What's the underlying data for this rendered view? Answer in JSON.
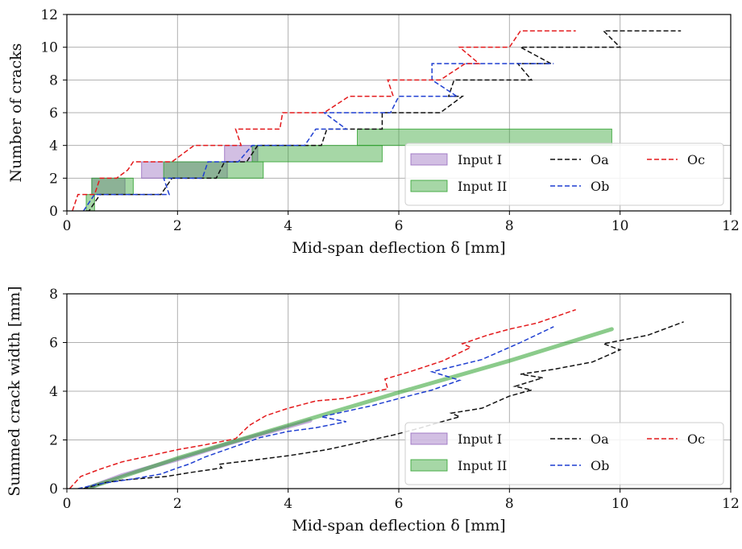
{
  "chart_data": [
    {
      "type": "line",
      "title": "",
      "xlabel": "Mid-span deflection δ [mm]",
      "ylabel": "Number of cracks",
      "xlim": [
        0,
        12
      ],
      "ylim": [
        0,
        12
      ],
      "xticks": [
        0,
        2,
        4,
        6,
        8,
        10,
        12
      ],
      "yticks": [
        0,
        2,
        4,
        6,
        8,
        10,
        12
      ],
      "grid": true,
      "legend_position": "lower-right",
      "legend": [
        {
          "label": "Input I",
          "kind": "band",
          "color": "#9467bd"
        },
        {
          "label": "Oa",
          "kind": "dashed",
          "color": "#111111"
        },
        {
          "label": "Oc",
          "kind": "dashed",
          "color": "#e31a1c"
        },
        {
          "label": "Input II",
          "kind": "band",
          "color": "#2ca02c"
        },
        {
          "label": "Ob",
          "kind": "dashed",
          "color": "#1f3fd1"
        }
      ],
      "bands": [
        {
          "name": "Input I",
          "color": "#9467bd",
          "rects": [
            [
              0.45,
              1.05,
              1,
              2
            ],
            [
              1.35,
              2.9,
              2,
              3
            ],
            [
              2.85,
              3.45,
              3,
              4
            ]
          ]
        },
        {
          "name": "Input II",
          "color": "#2ca02c",
          "rects": [
            [
              0.35,
              0.5,
              0,
              1
            ],
            [
              0.45,
              1.2,
              1,
              2
            ],
            [
              1.75,
              3.55,
              2,
              3
            ],
            [
              3.35,
              5.7,
              3,
              4
            ],
            [
              5.25,
              9.85,
              4,
              5
            ]
          ]
        }
      ],
      "series": [
        {
          "name": "Oa",
          "color": "#111111",
          "points": [
            [
              0.35,
              0
            ],
            [
              0.4,
              0
            ],
            [
              0.6,
              1
            ],
            [
              1.7,
              1
            ],
            [
              1.9,
              2
            ],
            [
              2.7,
              2
            ],
            [
              2.85,
              3
            ],
            [
              3.25,
              3
            ],
            [
              3.45,
              4
            ],
            [
              4.6,
              4
            ],
            [
              4.7,
              5
            ],
            [
              5.7,
              5
            ],
            [
              5.7,
              6
            ],
            [
              6.75,
              6
            ],
            [
              7.15,
              7
            ],
            [
              6.9,
              7
            ],
            [
              7.0,
              8
            ],
            [
              8.4,
              8
            ],
            [
              8.15,
              9
            ],
            [
              8.75,
              9
            ],
            [
              8.2,
              10
            ],
            [
              10.0,
              10
            ],
            [
              9.7,
              11
            ],
            [
              11.1,
              11
            ]
          ]
        },
        {
          "name": "Ob",
          "color": "#1f3fd1",
          "points": [
            [
              0.3,
              0
            ],
            [
              0.5,
              1
            ],
            [
              1.85,
              1
            ],
            [
              1.75,
              2
            ],
            [
              2.45,
              2
            ],
            [
              2.55,
              3
            ],
            [
              3.1,
              3
            ],
            [
              3.35,
              4
            ],
            [
              4.3,
              4
            ],
            [
              4.5,
              5
            ],
            [
              5.05,
              5
            ],
            [
              4.65,
              6
            ],
            [
              5.85,
              6
            ],
            [
              6.0,
              7
            ],
            [
              7.05,
              7
            ],
            [
              6.6,
              8
            ],
            [
              6.6,
              9
            ],
            [
              8.8,
              9
            ]
          ]
        },
        {
          "name": "Oc",
          "color": "#e31a1c",
          "points": [
            [
              0.1,
              0
            ],
            [
              0.2,
              1
            ],
            [
              0.5,
              1
            ],
            [
              0.6,
              2
            ],
            [
              0.9,
              2
            ],
            [
              1.1,
              2.5
            ],
            [
              1.2,
              3
            ],
            [
              1.9,
              3
            ],
            [
              2.3,
              4
            ],
            [
              3.15,
              4
            ],
            [
              3.05,
              5
            ],
            [
              3.85,
              5
            ],
            [
              3.9,
              6
            ],
            [
              4.65,
              6
            ],
            [
              5.1,
              7
            ],
            [
              5.9,
              7
            ],
            [
              5.8,
              8
            ],
            [
              6.75,
              8
            ],
            [
              7.2,
              9
            ],
            [
              7.45,
              9
            ],
            [
              7.1,
              10
            ],
            [
              8.0,
              10
            ],
            [
              8.2,
              11
            ],
            [
              9.2,
              11
            ]
          ]
        }
      ]
    },
    {
      "type": "line",
      "title": "",
      "xlabel": "Mid-span deflection δ [mm]",
      "ylabel": "Summed crack width [mm]",
      "xlim": [
        0,
        12
      ],
      "ylim": [
        0,
        8
      ],
      "xticks": [
        0,
        2,
        4,
        6,
        8,
        10,
        12
      ],
      "yticks": [
        0,
        2,
        4,
        6,
        8
      ],
      "grid": true,
      "legend_position": "lower-right",
      "legend": [
        {
          "label": "Input I",
          "kind": "band",
          "color": "#9467bd"
        },
        {
          "label": "Oa",
          "kind": "dashed",
          "color": "#111111"
        },
        {
          "label": "Oc",
          "kind": "dashed",
          "color": "#e31a1c"
        },
        {
          "label": "Input II",
          "kind": "band",
          "color": "#2ca02c"
        },
        {
          "label": "Ob",
          "kind": "dashed",
          "color": "#1f3fd1"
        }
      ],
      "bands": [
        {
          "name": "Input I",
          "color": "#9467bd",
          "polyline": [
            [
              0.35,
              0
            ],
            [
              1,
              0.55
            ],
            [
              2,
              1.2
            ],
            [
              3,
              1.9
            ],
            [
              4.4,
              2.8
            ]
          ],
          "width": 5
        },
        {
          "name": "Input II",
          "color": "#2ca02c",
          "polyline": [
            [
              0.35,
              0
            ],
            [
              2,
              1.25
            ],
            [
              4,
              2.6
            ],
            [
              6,
              3.95
            ],
            [
              8,
              5.25
            ],
            [
              9.85,
              6.55
            ]
          ],
          "width": 5
        }
      ],
      "series": [
        {
          "name": "Oa",
          "color": "#111111",
          "points": [
            [
              0.3,
              0
            ],
            [
              0.7,
              0.25
            ],
            [
              1,
              0.35
            ],
            [
              1.8,
              0.5
            ],
            [
              2.2,
              0.65
            ],
            [
              2.8,
              0.85
            ],
            [
              2.75,
              1.0
            ],
            [
              3.3,
              1.15
            ],
            [
              4,
              1.35
            ],
            [
              4.7,
              1.6
            ],
            [
              5.3,
              1.9
            ],
            [
              5.9,
              2.2
            ],
            [
              6.4,
              2.5
            ],
            [
              6.7,
              2.7
            ],
            [
              7.1,
              2.95
            ],
            [
              6.95,
              3.1
            ],
            [
              7.5,
              3.3
            ],
            [
              8,
              3.8
            ],
            [
              8.4,
              4.05
            ],
            [
              8.1,
              4.2
            ],
            [
              8.6,
              4.55
            ],
            [
              8.2,
              4.7
            ],
            [
              8.8,
              4.9
            ],
            [
              9.5,
              5.2
            ],
            [
              10,
              5.7
            ],
            [
              9.7,
              5.95
            ],
            [
              10.5,
              6.3
            ],
            [
              11.15,
              6.85
            ]
          ]
        },
        {
          "name": "Ob",
          "color": "#1f3fd1",
          "points": [
            [
              0.2,
              0
            ],
            [
              0.6,
              0.2
            ],
            [
              1.2,
              0.4
            ],
            [
              1.7,
              0.6
            ],
            [
              2.0,
              0.85
            ],
            [
              2.2,
              1.0
            ],
            [
              2.5,
              1.3
            ],
            [
              3.0,
              1.7
            ],
            [
              3.5,
              2.1
            ],
            [
              4.0,
              2.35
            ],
            [
              4.5,
              2.5
            ],
            [
              5.05,
              2.75
            ],
            [
              4.6,
              2.95
            ],
            [
              5.5,
              3.4
            ],
            [
              6.0,
              3.7
            ],
            [
              6.6,
              4.05
            ],
            [
              7.1,
              4.45
            ],
            [
              6.6,
              4.8
            ],
            [
              7.5,
              5.3
            ],
            [
              8.2,
              6.0
            ],
            [
              8.8,
              6.65
            ]
          ]
        },
        {
          "name": "Oc",
          "color": "#e31a1c",
          "points": [
            [
              0.05,
              0
            ],
            [
              0.25,
              0.5
            ],
            [
              0.6,
              0.8
            ],
            [
              1,
              1.1
            ],
            [
              1.5,
              1.35
            ],
            [
              2,
              1.6
            ],
            [
              2.5,
              1.8
            ],
            [
              3.05,
              2.05
            ],
            [
              3.3,
              2.6
            ],
            [
              3.6,
              3.0
            ],
            [
              4.0,
              3.3
            ],
            [
              4.5,
              3.6
            ],
            [
              5.0,
              3.7
            ],
            [
              5.8,
              4.1
            ],
            [
              5.75,
              4.5
            ],
            [
              6.2,
              4.8
            ],
            [
              6.8,
              5.25
            ],
            [
              7.3,
              5.8
            ],
            [
              7.15,
              5.95
            ],
            [
              7.6,
              6.3
            ],
            [
              8.0,
              6.55
            ],
            [
              8.5,
              6.8
            ],
            [
              9.2,
              7.35
            ]
          ]
        }
      ]
    }
  ]
}
